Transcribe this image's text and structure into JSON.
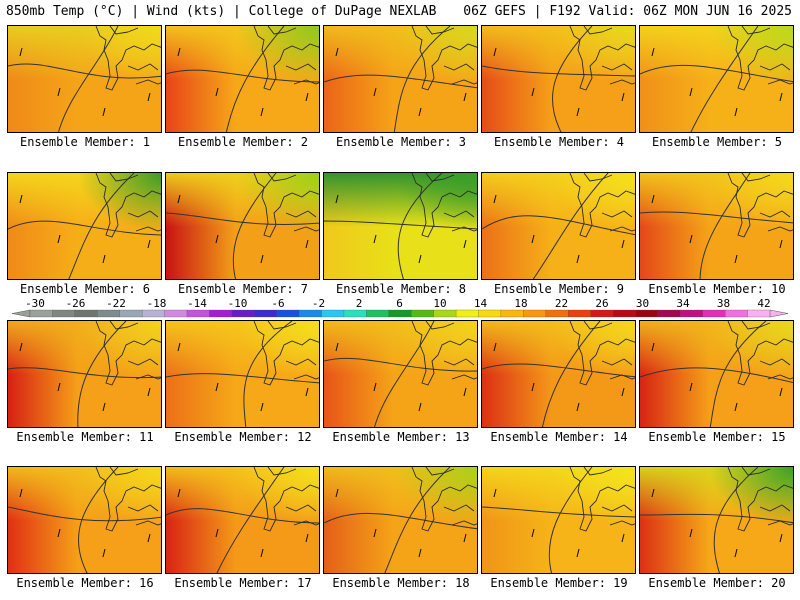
{
  "header": {
    "left": "850mb Temp (°C) | Wind (kts) | College of DuPage NEXLAB",
    "right": "06Z GEFS | F192 Valid: 06Z MON JUN 16 2025"
  },
  "colorbar": {
    "ticks": [
      "-30",
      "-26",
      "-22",
      "-18",
      "-14",
      "-10",
      "-6",
      "-2",
      "2",
      "6",
      "10",
      "14",
      "18",
      "22",
      "26",
      "30",
      "34",
      "38",
      "42"
    ],
    "colors": [
      "#9aa09a",
      "#808780",
      "#6e756e",
      "#7f8a8f",
      "#9aa6b4",
      "#b8b2d6",
      "#d08ae0",
      "#c055d8",
      "#a020d0",
      "#6a1cc8",
      "#3a2ad0",
      "#1a50e0",
      "#1a8ae8",
      "#28c8f0",
      "#28e0c0",
      "#20c060",
      "#189828",
      "#58b818",
      "#a8d818",
      "#f0f018",
      "#f8d810",
      "#f8b810",
      "#f89810",
      "#f07010",
      "#e84010",
      "#d81818",
      "#b80a14",
      "#980610",
      "#a00850",
      "#c01080",
      "#e030b8",
      "#f070e0",
      "#f8b0f0"
    ]
  },
  "panels": [
    {
      "label": "Ensemble Member: 1",
      "base": "#f5a418",
      "west": "#ef8a18",
      "north": "#e8d020",
      "ne": "#f2d81c"
    },
    {
      "label": "Ensemble Member: 2",
      "base": "#f6a818",
      "west": "#e84418",
      "north": "#f2c81c",
      "ne": "#8ec81c"
    },
    {
      "label": "Ensemble Member: 3",
      "base": "#f5a418",
      "west": "#ec6418",
      "north": "#f0c01c",
      "ne": "#d8d81c"
    },
    {
      "label": "Ensemble Member: 4",
      "base": "#f5a018",
      "west": "#e64c18",
      "north": "#f2c21c",
      "ne": "#e8d81c"
    },
    {
      "label": "Ensemble Member: 5",
      "base": "#f6b018",
      "west": "#f09018",
      "north": "#f4d41c",
      "ne": "#b8d81c"
    },
    {
      "label": "Ensemble Member: 6",
      "base": "#f6ae18",
      "west": "#f08a18",
      "north": "#f4d81c",
      "ne": "#3a9a28"
    },
    {
      "label": "Ensemble Member: 7",
      "base": "#f3a018",
      "west": "#c81414",
      "north": "#f0d21c",
      "ne": "#9ad018"
    },
    {
      "label": "Ensemble Member: 8",
      "base": "#e8e018",
      "west": "#f0c81c",
      "north": "#2a9030",
      "ne": "#3aa028"
    },
    {
      "label": "Ensemble Member: 9",
      "base": "#f6b018",
      "west": "#ec7018",
      "north": "#f4d21c",
      "ne": "#f4e01c"
    },
    {
      "label": "Ensemble Member: 10",
      "base": "#f5a418",
      "west": "#e44818",
      "north": "#f2c81c",
      "ne": "#f4d81c"
    },
    {
      "label": "Ensemble Member: 11",
      "base": "#f5a018",
      "west": "#d82014",
      "north": "#f0b01c",
      "ne": "#f2d41c"
    },
    {
      "label": "Ensemble Member: 12",
      "base": "#f6a818",
      "west": "#ec7018",
      "north": "#f4c81c",
      "ne": "#f4e01c"
    },
    {
      "label": "Ensemble Member: 13",
      "base": "#f5a418",
      "west": "#e85418",
      "north": "#f0c01c",
      "ne": "#f2d41c"
    },
    {
      "label": "Ensemble Member: 14",
      "base": "#f49818",
      "west": "#dc3014",
      "north": "#f2c01c",
      "ne": "#f4d81c"
    },
    {
      "label": "Ensemble Member: 15",
      "base": "#f5a018",
      "west": "#d82414",
      "north": "#f0b81c",
      "ne": "#e8d81c"
    },
    {
      "label": "Ensemble Member: 16",
      "base": "#f5a018",
      "west": "#e03014",
      "north": "#f2c01c",
      "ne": "#f4d81c"
    },
    {
      "label": "Ensemble Member: 17",
      "base": "#f49a18",
      "west": "#d82414",
      "north": "#f4c41c",
      "ne": "#f4e01c"
    },
    {
      "label": "Ensemble Member: 18",
      "base": "#f5a418",
      "west": "#e46018",
      "north": "#f0c01c",
      "ne": "#a8d018"
    },
    {
      "label": "Ensemble Member: 19",
      "base": "#f6b418",
      "west": "#f09418",
      "north": "#f4d81c",
      "ne": "#f4e41c"
    },
    {
      "label": "Ensemble Member: 20",
      "base": "#f6a818",
      "west": "#dc3014",
      "north": "#d8d81c",
      "ne": "#3aa028"
    }
  ]
}
